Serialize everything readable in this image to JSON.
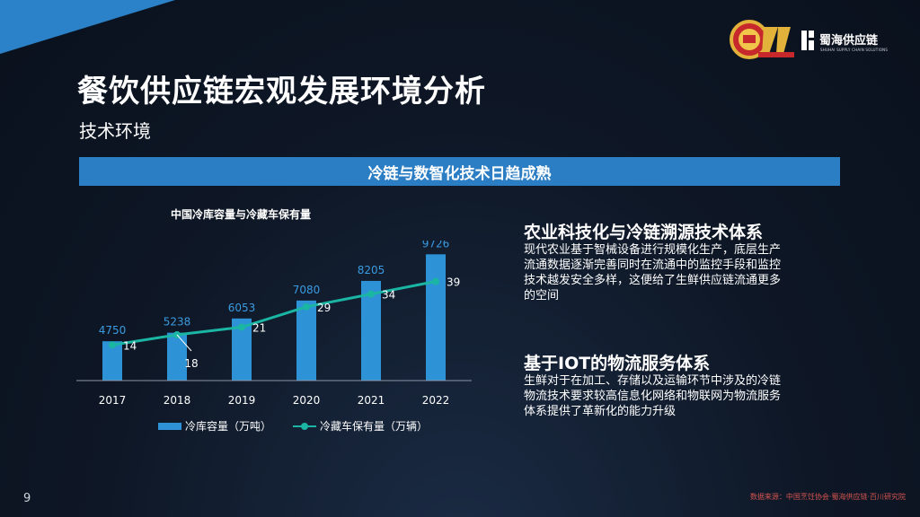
{
  "header": {
    "title": "餐饮供应链宏观发展环境分析",
    "subtitle": "技术环境",
    "band_text": "冷链与数智化技术日趋成熟",
    "brand_name": "蜀海供应链",
    "brand_sub": "SHUHAI SUPPLY CHAIN SOLUTIONS"
  },
  "chart_data": {
    "type": "bar",
    "title": "中国冷库容量与冷藏车保有量",
    "categories": [
      "2017",
      "2018",
      "2019",
      "2020",
      "2021",
      "2022"
    ],
    "series": [
      {
        "name": "冷库容量（万吨）",
        "type": "bar",
        "values": [
          4750,
          5238,
          6053,
          7080,
          8205,
          9726
        ]
      },
      {
        "name": "冷藏车保有量（万辆）",
        "type": "line",
        "values": [
          14,
          18,
          21,
          29,
          34,
          39
        ]
      }
    ],
    "legend_position": "bottom",
    "grid": false
  },
  "sections": [
    {
      "title": "农业科技化与冷链溯源技术体系",
      "lines": [
        "现代农业基于智械设备进行规模化生产，底层生产",
        "流通数据逐渐完善同时在流通中的监控手段和监控",
        "技术越发安全多样，这便给了生鲜供应链流通更多",
        "的空间"
      ]
    },
    {
      "title": "基于IOT的物流服务体系",
      "lines": [
        "生鲜对于在加工、存储以及运输环节中涉及的冷链",
        "物流技术要求较高信息化网络和物联网为物流服务",
        "体系提供了革新化的能力升级"
      ]
    }
  ],
  "footer": {
    "page_number": "9",
    "source": "数据来源：中国烹饪协会·蜀海供应链·百川研究院"
  },
  "colors": {
    "background": "#0e1726",
    "accent_blue": "#2b7dc4",
    "bar": "#2d93d6",
    "line": "#1bb5a4",
    "source_text": "#d4554f"
  },
  "icons": [
    "corner-triangle-decoration",
    "anniversary-badge-icon",
    "shuhai-logo-icon"
  ]
}
